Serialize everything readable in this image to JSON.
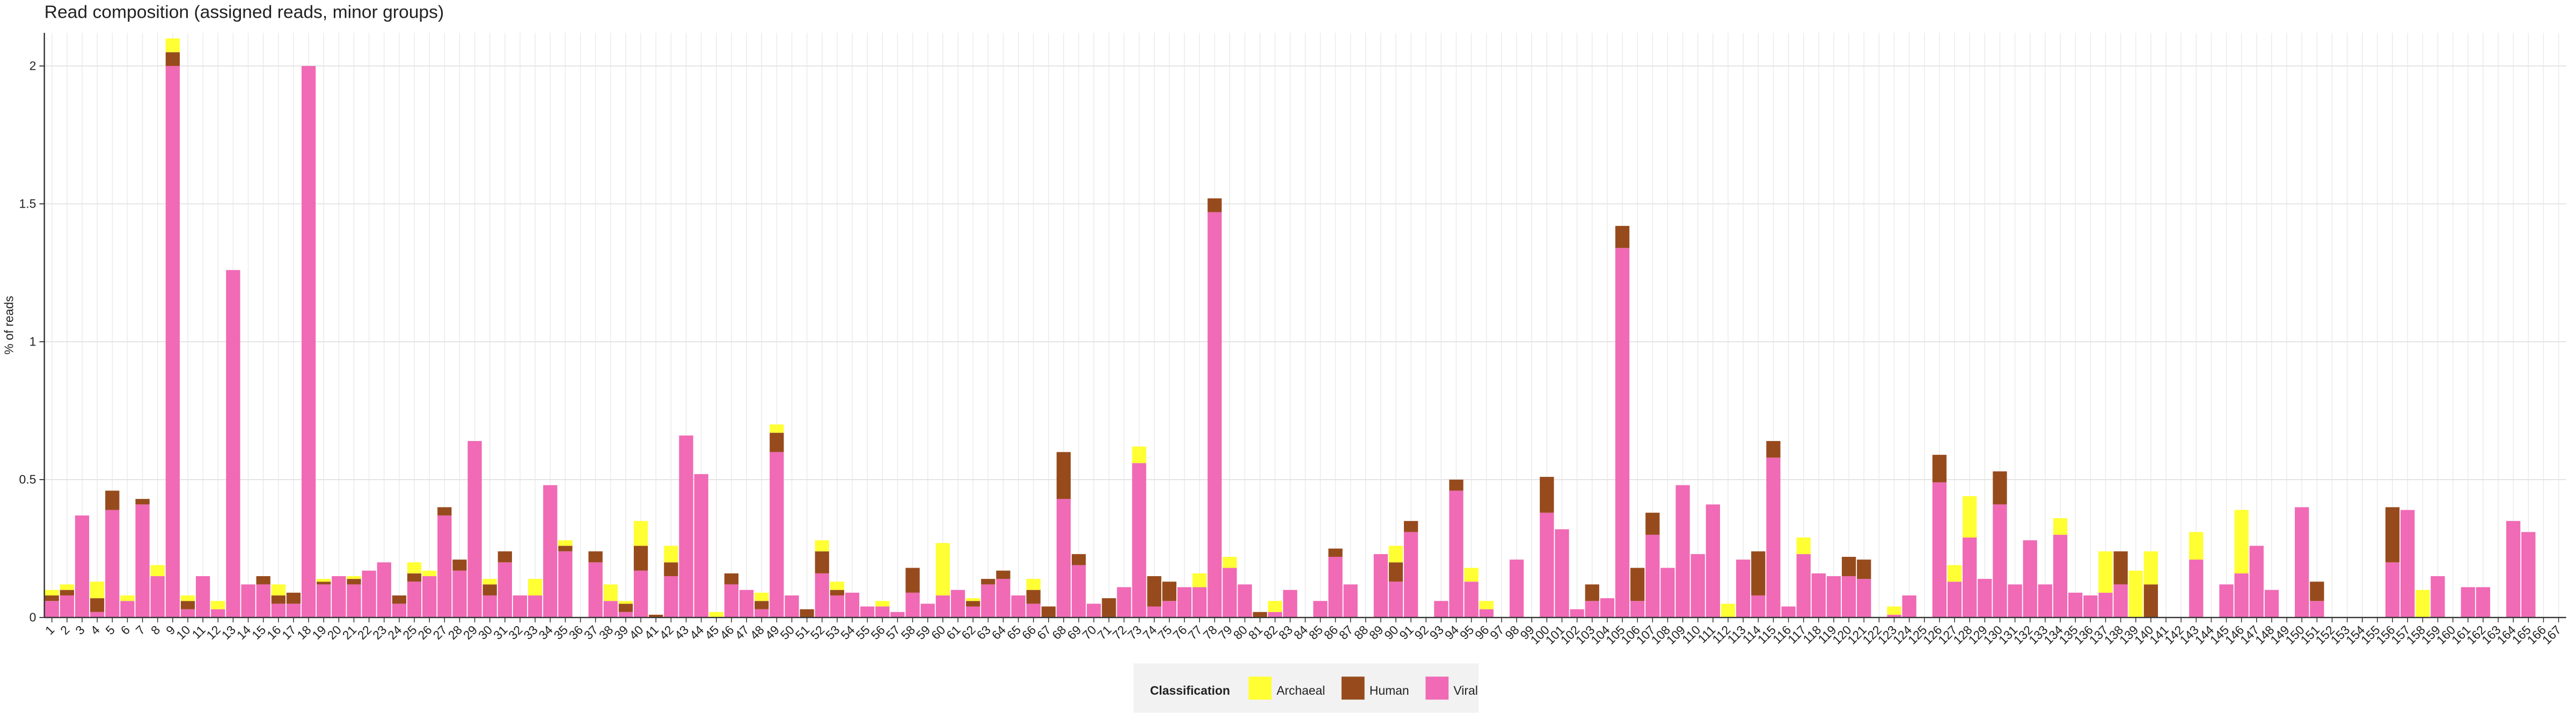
{
  "chart_data": {
    "type": "stacked_bar",
    "title": "Read composition (assigned reads, minor groups)",
    "y_label": "% of reads",
    "legend_title": "Classification",
    "legend": "bottom",
    "grid": true,
    "ylim": [
      0,
      2.12
    ],
    "yticks": [
      0,
      0.5,
      1,
      1.5,
      2
    ],
    "categories": [
      "1",
      "2",
      "3",
      "4",
      "5",
      "6",
      "7",
      "8",
      "9",
      "10",
      "11",
      "12",
      "13",
      "14",
      "15",
      "16",
      "17",
      "18",
      "19",
      "20",
      "21",
      "22",
      "23",
      "24",
      "25",
      "26",
      "27",
      "28",
      "29",
      "30",
      "31",
      "32",
      "33",
      "34",
      "35",
      "36",
      "37",
      "38",
      "39",
      "40",
      "41",
      "42",
      "43",
      "44",
      "45",
      "46",
      "47",
      "48",
      "49",
      "50",
      "51",
      "52",
      "53",
      "54",
      "55",
      "56",
      "57",
      "58",
      "59",
      "60",
      "61",
      "62",
      "63",
      "64",
      "65",
      "66",
      "67",
      "68",
      "69",
      "70",
      "71",
      "72",
      "73",
      "74",
      "75",
      "76",
      "77",
      "78",
      "79",
      "80",
      "81",
      "82",
      "83",
      "84",
      "85",
      "86",
      "87",
      "88",
      "89",
      "90",
      "91",
      "92",
      "93",
      "94",
      "95",
      "96",
      "97",
      "98",
      "99",
      "100",
      "101",
      "102",
      "103",
      "104",
      "105",
      "106",
      "107",
      "108",
      "109",
      "110",
      "111",
      "112",
      "113",
      "114",
      "115",
      "116",
      "117",
      "118",
      "119",
      "120",
      "121",
      "122",
      "123",
      "124",
      "125",
      "126",
      "127",
      "128",
      "129",
      "130",
      "131",
      "132",
      "133",
      "134",
      "135",
      "136",
      "137",
      "138",
      "139",
      "140",
      "141",
      "142",
      "143",
      "144",
      "145",
      "146",
      "147",
      "148",
      "149",
      "150",
      "151",
      "152",
      "153",
      "154",
      "155",
      "156",
      "157",
      "158",
      "159",
      "160",
      "161",
      "162",
      "163",
      "164",
      "165",
      "166",
      "167"
    ],
    "series": [
      {
        "name": "Archaeal",
        "color": "#ffff33",
        "values": [
          0.02,
          0.02,
          0,
          0.06,
          0,
          0.02,
          0,
          0.04,
          0.05,
          0.02,
          0,
          0.03,
          0,
          0,
          0,
          0.04,
          0,
          0,
          0.01,
          0,
          0.01,
          0,
          0,
          0,
          0.04,
          0.02,
          0,
          0,
          0,
          0.02,
          0,
          0,
          0.06,
          0,
          0.02,
          0,
          0,
          0.06,
          0.01,
          0.09,
          0,
          0.06,
          0,
          0,
          0.02,
          0,
          0,
          0.03,
          0.03,
          0,
          0,
          0.04,
          0.03,
          0,
          0,
          0.02,
          0,
          0,
          0,
          0.19,
          0,
          0.01,
          0,
          0,
          0,
          0.04,
          0,
          0,
          0,
          0,
          0,
          0,
          0.06,
          0,
          0,
          0,
          0.05,
          0,
          0.04,
          0,
          0,
          0.04,
          0,
          0,
          0,
          0,
          0,
          0,
          0,
          0.06,
          0,
          0,
          0,
          0,
          0.05,
          0.03,
          0,
          0,
          0,
          0,
          0,
          0,
          0,
          0,
          0,
          0,
          0,
          0,
          0,
          0,
          0,
          0.05,
          0,
          0,
          0,
          0,
          0.06,
          0,
          0,
          0,
          0,
          0,
          0.03,
          0,
          0,
          0,
          0.06,
          0.15,
          0,
          0,
          0,
          0,
          0,
          0.06,
          0,
          0,
          0.15,
          0,
          0.17,
          0.12,
          0,
          0,
          0.1,
          0,
          0,
          0.23,
          0,
          0,
          0,
          0,
          0,
          0,
          0,
          0,
          0,
          0,
          0,
          0.1,
          0,
          0,
          0,
          0,
          0,
          0,
          0,
          0,
          0
        ]
      },
      {
        "name": "Human",
        "color": "#974b1d",
        "values": [
          0.02,
          0.02,
          0,
          0.05,
          0.07,
          0,
          0.02,
          0,
          0.05,
          0.03,
          0,
          0,
          0,
          0,
          0.03,
          0.03,
          0.04,
          0,
          0.01,
          0,
          0.02,
          0,
          0,
          0.03,
          0.03,
          0,
          0.03,
          0.04,
          0,
          0.04,
          0.04,
          0,
          0,
          0,
          0.02,
          0,
          0.04,
          0,
          0.03,
          0.09,
          0.01,
          0.05,
          0,
          0,
          0,
          0.04,
          0,
          0.03,
          0.07,
          0,
          0.03,
          0.08,
          0.02,
          0,
          0,
          0,
          0,
          0.09,
          0,
          0,
          0,
          0.02,
          0.02,
          0.03,
          0,
          0.05,
          0.04,
          0.17,
          0.04,
          0,
          0.07,
          0,
          0,
          0.11,
          0.07,
          0,
          0,
          0.05,
          0,
          0,
          0.02,
          0,
          0,
          0,
          0,
          0.03,
          0,
          0,
          0,
          0.07,
          0.04,
          0,
          0,
          0.04,
          0,
          0,
          0,
          0,
          0,
          0.13,
          0,
          0,
          0.06,
          0,
          0.08,
          0.12,
          0.08,
          0,
          0,
          0,
          0,
          0,
          0,
          0.16,
          0.06,
          0,
          0,
          0,
          0,
          0.07,
          0.07,
          0,
          0,
          0,
          0,
          0.1,
          0,
          0,
          0,
          0.12,
          0,
          0,
          0,
          0,
          0,
          0,
          0,
          0.12,
          0,
          0.12,
          0,
          0,
          0,
          0,
          0,
          0,
          0,
          0,
          0,
          0,
          0.07,
          0,
          0,
          0,
          0,
          0.2,
          0,
          0,
          0,
          0,
          0,
          0,
          0,
          0,
          0,
          0,
          0
        ]
      },
      {
        "name": "Viral",
        "color": "#f06ab5",
        "values": [
          0.06,
          0.08,
          0.37,
          0.02,
          0.39,
          0.06,
          0.41,
          0.15,
          2.0,
          0.03,
          0.15,
          0.03,
          1.26,
          0.12,
          0.12,
          0.05,
          0.05,
          2.0,
          0.12,
          0.15,
          0.12,
          0.17,
          0.2,
          0.05,
          0.13,
          0.15,
          0.37,
          0.17,
          0.64,
          0.08,
          0.2,
          0.08,
          0.08,
          0.48,
          0.24,
          0,
          0.2,
          0.06,
          0.02,
          0.17,
          0,
          0.15,
          0.66,
          0.52,
          0,
          0.12,
          0.1,
          0.03,
          0.6,
          0.08,
          0,
          0.16,
          0.08,
          0.09,
          0.04,
          0.04,
          0.02,
          0.09,
          0.05,
          0.08,
          0.1,
          0.04,
          0.12,
          0.14,
          0.08,
          0.05,
          0,
          0.43,
          0.19,
          0.05,
          0,
          0.11,
          0.56,
          0.04,
          0.06,
          0.11,
          0.11,
          1.47,
          0.18,
          0.12,
          0,
          0.02,
          0.1,
          0,
          0.06,
          0.22,
          0.12,
          0,
          0.23,
          0.13,
          0.31,
          0,
          0.06,
          0.46,
          0.13,
          0.03,
          0,
          0.21,
          0,
          0.38,
          0.32,
          0.03,
          0.06,
          0.07,
          1.34,
          0.06,
          0.3,
          0.18,
          0.48,
          0.23,
          0.41,
          0,
          0.21,
          0.08,
          0.58,
          0.04,
          0.23,
          0.16,
          0.15,
          0.15,
          0.14,
          0,
          0.01,
          0.08,
          0,
          0.49,
          0.13,
          0.29,
          0.14,
          0.41,
          0.12,
          0.28,
          0.12,
          0.3,
          0.09,
          0.08,
          0.09,
          0.12,
          0,
          0,
          0,
          0,
          0.21,
          0,
          0.12,
          0.16,
          0.26,
          0.1,
          0,
          0.4,
          0.06,
          0,
          0,
          0,
          0,
          0.2,
          0.39,
          0,
          0.15,
          0,
          0.11,
          0.11,
          0,
          0.35,
          0.31,
          0,
          0
        ]
      }
    ]
  }
}
